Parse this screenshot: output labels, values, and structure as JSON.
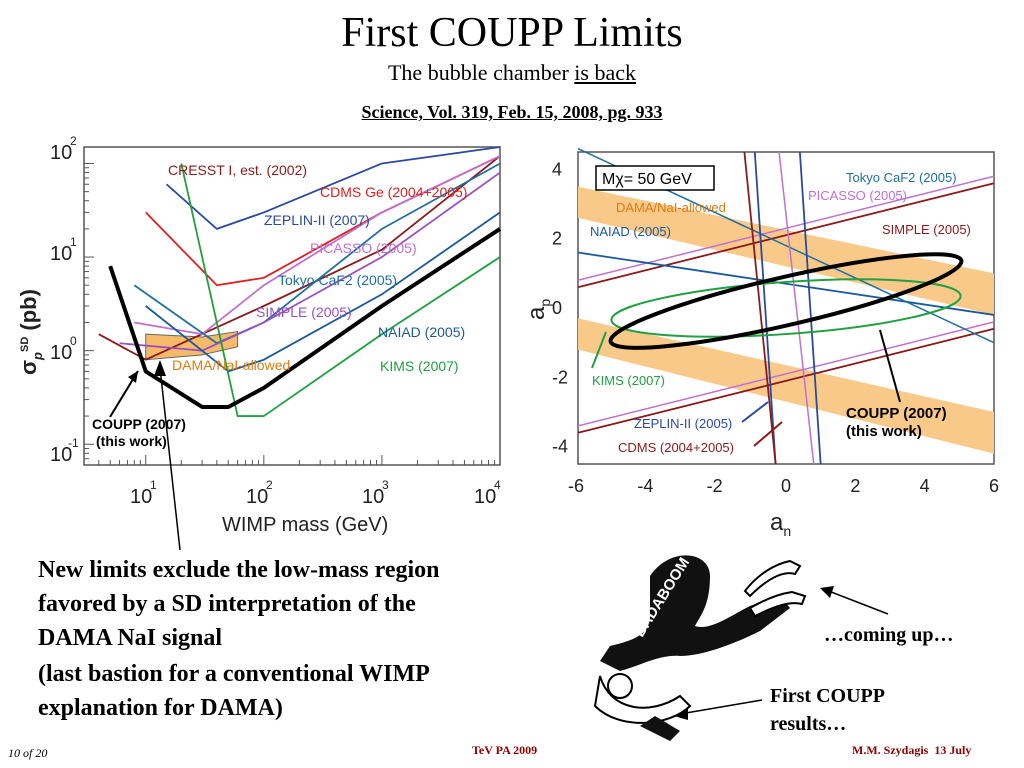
{
  "slide": {
    "title": "First COUPP Limits",
    "subtitle_prefix": "The bubble chamber ",
    "subtitle_underlined": "is back",
    "reference": "Science, Vol. 319, Feb. 15, 2008, pg. 933"
  },
  "body_text": {
    "line1": "New limits exclude the low-mass region",
    "line2": "favored by a SD interpretation of the",
    "line3": "DAMA NaI signal",
    "line4": "(last bastion for a conventional WIMP",
    "line5": "explanation for DAMA)"
  },
  "cartoon": {
    "caption_top": "…coming up…",
    "caption_bottom_1": "First COUPP",
    "caption_bottom_2": "results…",
    "shirt_text": "BADABOOM"
  },
  "footer": {
    "page": "10",
    "page_of": "of 20",
    "conference": "TeV PA 2009",
    "author": "M.M. Szydagis",
    "date": "13 July"
  },
  "chart_data": [
    {
      "type": "line",
      "xlabel": "WIMP mass (GeV)",
      "ylabel": "σp SD (pb)",
      "x_scale": "log",
      "y_scale": "log",
      "xlim": [
        3,
        10000
      ],
      "ylim": [
        0.06,
        150
      ],
      "x_ticks": [
        "10^1",
        "10^2",
        "10^3",
        "10^4"
      ],
      "y_ticks": [
        "10^-1",
        "10^0",
        "10^1",
        "10^2"
      ],
      "series": [
        {
          "name": "CRESST I, est. (2002)",
          "color": "#8b1a1a",
          "x": [
            4,
            10,
            100,
            1000,
            10000
          ],
          "y": [
            1.5,
            0.8,
            3,
            12,
            120
          ]
        },
        {
          "name": "CDMS Ge (2004+2005)",
          "color": "#e02020",
          "x": [
            10,
            40,
            100,
            1000,
            10000
          ],
          "y": [
            30,
            5,
            6,
            30,
            120
          ]
        },
        {
          "name": "ZEPLIN-II (2007)",
          "color": "#2a4aa0",
          "x": [
            15,
            40,
            100,
            1000,
            10000
          ],
          "y": [
            60,
            20,
            30,
            100,
            150
          ]
        },
        {
          "name": "PICASSO (2005)",
          "color": "#c070d0",
          "x": [
            8,
            30,
            100,
            1000,
            10000
          ],
          "y": [
            2,
            1.5,
            5,
            30,
            120
          ]
        },
        {
          "name": "Tokyo CaF2 (2005)",
          "color": "#2070a0",
          "x": [
            8,
            40,
            100,
            1000,
            10000
          ],
          "y": [
            5,
            1.2,
            2,
            20,
            100
          ]
        },
        {
          "name": "SIMPLE (2005)",
          "color": "#9a50c0",
          "x": [
            6,
            30,
            100,
            1000,
            10000
          ],
          "y": [
            1.2,
            1,
            2,
            10,
            80
          ]
        },
        {
          "name": "NAIAD (2005)",
          "color": "#1a5a9a",
          "x": [
            10,
            50,
            100,
            1000,
            10000
          ],
          "y": [
            3,
            0.6,
            0.8,
            4,
            30
          ]
        },
        {
          "name": "KIMS (2007)",
          "color": "#20a040",
          "x": [
            20,
            60,
            100,
            1000,
            10000
          ],
          "y": [
            100,
            0.2,
            0.2,
            1.5,
            10
          ]
        },
        {
          "name": "COUPP (2007) (this work)",
          "color": "#000000",
          "x": [
            5,
            10,
            30,
            50,
            100,
            1000,
            10000
          ],
          "y": [
            8,
            0.6,
            0.25,
            0.25,
            0.4,
            3,
            20
          ]
        },
        {
          "name": "DAMA/NaI-allowed",
          "color": "#f7b96a",
          "type": "area",
          "x": [
            10,
            30,
            60
          ],
          "y_low": [
            0.8,
            0.9,
            1.1
          ],
          "y_high": [
            1.5,
            1.4,
            1.6
          ]
        }
      ],
      "annotations": [
        "CRESST I, est. (2002)",
        "CDMS Ge (2004+2005)",
        "ZEPLIN-II (2007)",
        "PICASSO (2005)",
        "Tokyo CaF2 (2005)",
        "SIMPLE (2005)",
        "NAIAD (2005)",
        "KIMS (2007)",
        "DAMA/NaI-allowed",
        "COUPP (2007)",
        "(this work)"
      ]
    },
    {
      "type": "line",
      "xlabel": "an",
      "ylabel": "ap",
      "xlim": [
        -6,
        6
      ],
      "ylim": [
        -4.5,
        4.5
      ],
      "x_ticks": [
        "-6",
        "-4",
        "-2",
        "0",
        "2",
        "4",
        "6"
      ],
      "y_ticks": [
        "-4",
        "-2",
        "0",
        "2",
        "4"
      ],
      "box_label": "Mχ= 50 GeV",
      "annotations": [
        "Tokyo CaF2 (2005)",
        "PICASSO (2005)",
        "DAMA/NaI-allowed",
        "SIMPLE (2005)",
        "NAIAD (2005)",
        "KIMS (2007)",
        "ZEPLIN-II (2005)",
        "CDMS (2004+2005)",
        "COUPP (2007)",
        "(this work)"
      ]
    }
  ]
}
